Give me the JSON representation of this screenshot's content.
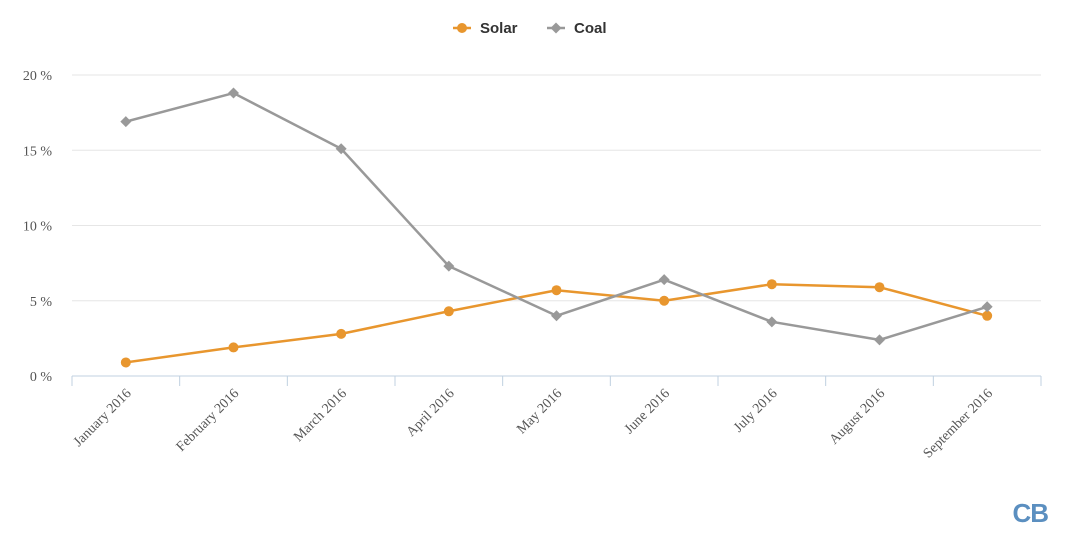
{
  "chart_data": {
    "type": "line",
    "categories": [
      "January 2016",
      "February 2016",
      "March 2016",
      "April 2016",
      "May 2016",
      "June 2016",
      "July 2016",
      "August 2016",
      "September 2016"
    ],
    "series": [
      {
        "name": "Solar",
        "color": "#e8962e",
        "marker": "circle",
        "values": [
          0.9,
          1.9,
          2.8,
          4.3,
          5.7,
          5.0,
          6.1,
          5.9,
          4.0
        ]
      },
      {
        "name": "Coal",
        "color": "#999999",
        "marker": "diamond",
        "values": [
          16.9,
          18.8,
          15.1,
          7.3,
          4.0,
          6.4,
          3.6,
          2.4,
          4.6
        ]
      }
    ],
    "ylim": [
      0,
      20
    ],
    "yticks": [
      {
        "value": 0,
        "label": "0 %"
      },
      {
        "value": 5,
        "label": "5 %"
      },
      {
        "value": 10,
        "label": "10 %"
      },
      {
        "value": 15,
        "label": "15 %"
      },
      {
        "value": 20,
        "label": "20 %"
      }
    ],
    "grid": true,
    "legend_position": "top-center"
  },
  "watermark": "CB"
}
